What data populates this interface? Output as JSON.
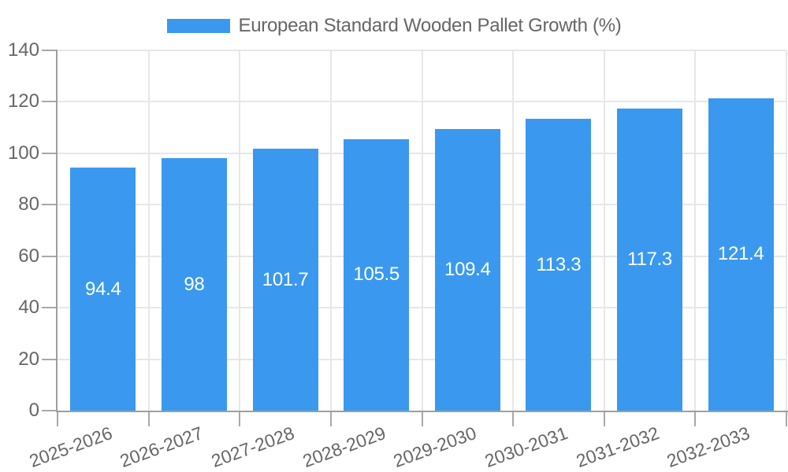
{
  "legend": {
    "label": "European Standard Wooden Pallet Growth (%)"
  },
  "chart_data": {
    "type": "bar",
    "title": "European Standard Wooden Pallet Growth (%)",
    "categories": [
      "2025-2026",
      "2026-2027",
      "2027-2028",
      "2028-2029",
      "2029-2030",
      "2030-2031",
      "2031-2032",
      "2032-2033"
    ],
    "values": [
      94.4,
      98,
      101.7,
      105.5,
      109.4,
      113.3,
      117.3,
      121.4
    ],
    "bar_labels": [
      "94.4",
      "98",
      "101.7",
      "105.5",
      "109.4",
      "113.3",
      "117.3",
      "121.4"
    ],
    "series": [
      {
        "name": "European Standard Wooden Pallet Growth (%)",
        "values": [
          94.4,
          98,
          101.7,
          105.5,
          109.4,
          113.3,
          117.3,
          121.4
        ]
      }
    ],
    "xlabel": "",
    "ylabel": "",
    "ylim": [
      0,
      140
    ],
    "yticks": [
      0,
      20,
      40,
      60,
      80,
      100,
      120,
      140
    ],
    "grid": true,
    "legend_position": "top",
    "value_labels_inside_bars": true
  },
  "colors": {
    "bar": "#3a99ef",
    "bar_label_text": "#ffffff",
    "grid_line": "#e7e7e7",
    "axis_line": "#9e9e9e",
    "tick_mark": "#a8a8a8",
    "tick_text": "#666666",
    "legend_text": "#666666",
    "background": "#ffffff"
  }
}
